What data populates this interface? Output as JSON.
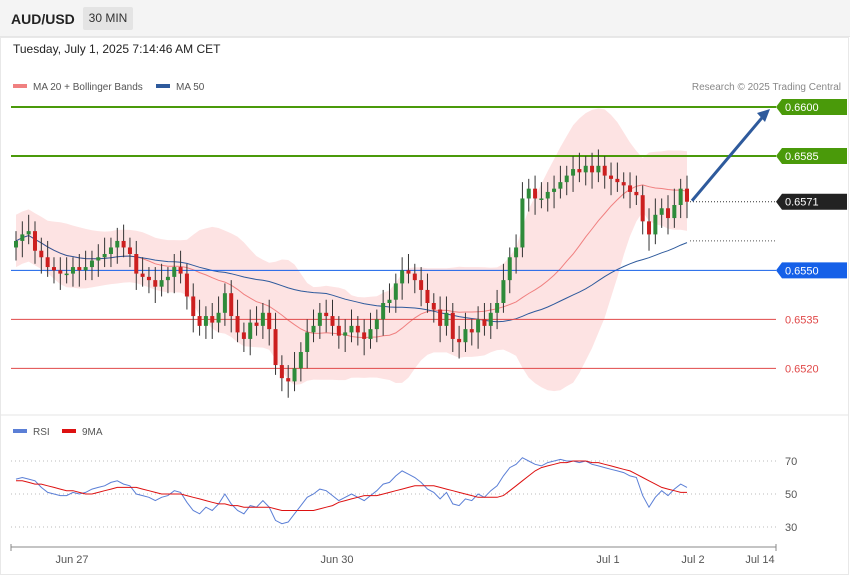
{
  "header": {
    "symbol": "AUD/USD",
    "timeframe": "30 MIN",
    "datetime": "Tuesday, July 1, 2025 7:14:46 AM CET"
  },
  "colors": {
    "ma20": "#f08080",
    "ma50": "#2e5a9c",
    "bands_fill": "#fde3e3",
    "up_candle": "#2e8b3a",
    "down_candle": "#cc1f1f",
    "resistance": "#4a9a0a",
    "support_blue": "#1560e8",
    "support_red": "#e04848",
    "last_price": "#222222",
    "rsi": "#5b7fd6",
    "rsi_ma": "#dd1111",
    "arrow": "#2e5a9c"
  },
  "chart_data": [
    {
      "type": "candlestick",
      "title": "",
      "legend": [
        {
          "name": "MA 20 + Bollinger Bands",
          "color": "#f08080"
        },
        {
          "name": "MA 50",
          "color": "#2e5a9c"
        }
      ],
      "credit": "Research © 2025 Trading Central",
      "ylim": [
        0.6503,
        0.6608
      ],
      "x_ticks": [
        "Jun 27",
        "Jun 30",
        "Jul 1",
        "Jul 2",
        "Jul 14"
      ],
      "levels": [
        {
          "value": 0.66,
          "label": "0.6600",
          "kind": "resistance"
        },
        {
          "value": 0.6585,
          "label": "0.6585",
          "kind": "resistance"
        },
        {
          "value": 0.6571,
          "label": "0.6571",
          "kind": "last"
        },
        {
          "value": 0.655,
          "label": "0.6550",
          "kind": "support-blue"
        },
        {
          "value": 0.6535,
          "label": "0.6535",
          "kind": "support-red"
        },
        {
          "value": 0.652,
          "label": "0.6520",
          "kind": "support-red"
        }
      ],
      "ma50_dotted_level": 0.6559,
      "arrow_target": 0.66,
      "closes": [
        0.6559,
        0.6561,
        0.6562,
        0.6556,
        0.6554,
        0.6551,
        0.655,
        0.6549,
        0.6549,
        0.6551,
        0.655,
        0.6551,
        0.6553,
        0.6554,
        0.6555,
        0.6557,
        0.6559,
        0.6557,
        0.6555,
        0.6549,
        0.6548,
        0.6547,
        0.6545,
        0.6547,
        0.6548,
        0.6551,
        0.6549,
        0.6542,
        0.6536,
        0.6533,
        0.6536,
        0.6534,
        0.6537,
        0.6543,
        0.6536,
        0.6531,
        0.6529,
        0.6534,
        0.6533,
        0.6537,
        0.6532,
        0.6521,
        0.6517,
        0.6516,
        0.652,
        0.6525,
        0.6531,
        0.6533,
        0.6537,
        0.6536,
        0.6533,
        0.653,
        0.6531,
        0.6533,
        0.6531,
        0.6529,
        0.6532,
        0.6535,
        0.654,
        0.6541,
        0.6546,
        0.655,
        0.6549,
        0.6547,
        0.6544,
        0.654,
        0.6538,
        0.6533,
        0.6537,
        0.6529,
        0.6528,
        0.6532,
        0.6531,
        0.6535,
        0.6533,
        0.6537,
        0.654,
        0.6547,
        0.6554,
        0.6557,
        0.6572,
        0.6575,
        0.6572,
        0.6572,
        0.6574,
        0.6575,
        0.6577,
        0.6579,
        0.6581,
        0.658,
        0.6582,
        0.658,
        0.6582,
        0.6579,
        0.6578,
        0.6577,
        0.6576,
        0.6574,
        0.6573,
        0.6565,
        0.6561,
        0.6567,
        0.6569,
        0.6566,
        0.657,
        0.6575,
        0.6571
      ]
    },
    {
      "type": "line",
      "title": "",
      "legend": [
        {
          "name": "RSI",
          "color": "#5b7fd6"
        },
        {
          "name": "9MA",
          "color": "#dd1111"
        }
      ],
      "ylim": [
        25,
        75
      ],
      "y_ticks": [
        70,
        50,
        30
      ],
      "series": [
        {
          "name": "RSI",
          "values": [
            59,
            60,
            59,
            58,
            54,
            51,
            50,
            49,
            49,
            51,
            50,
            51,
            53,
            54,
            55,
            57,
            58,
            56,
            55,
            50,
            49,
            48,
            46,
            48,
            49,
            52,
            51,
            45,
            40,
            38,
            42,
            40,
            44,
            50,
            44,
            40,
            38,
            43,
            42,
            46,
            42,
            34,
            32,
            33,
            38,
            43,
            48,
            50,
            53,
            52,
            49,
            46,
            48,
            50,
            48,
            46,
            49,
            52,
            56,
            57,
            61,
            64,
            62,
            60,
            57,
            53,
            51,
            47,
            51,
            44,
            43,
            47,
            46,
            50,
            48,
            52,
            55,
            61,
            66,
            68,
            72,
            70,
            68,
            67,
            69,
            70,
            71,
            70,
            70,
            69,
            70,
            68,
            67,
            66,
            65,
            64,
            63,
            61,
            60,
            49,
            42,
            48,
            52,
            49,
            53,
            56,
            54
          ]
        },
        {
          "name": "9MA",
          "values": [
            58,
            58,
            57,
            56,
            56,
            55,
            54,
            53,
            52,
            52,
            51,
            50,
            50,
            51,
            52,
            53,
            54,
            54,
            54,
            54,
            53,
            52,
            51,
            50,
            50,
            50,
            50,
            49,
            48,
            47,
            46,
            45,
            44,
            44,
            43,
            43,
            42,
            42,
            42,
            42,
            42,
            41,
            40,
            40,
            40,
            40,
            40,
            40,
            41,
            42,
            43,
            45,
            46,
            47,
            48,
            49,
            49,
            49,
            50,
            51,
            52,
            53,
            54,
            55,
            55,
            55,
            55,
            54,
            53,
            52,
            51,
            50,
            49,
            48,
            48,
            48,
            48,
            49,
            52,
            55,
            58,
            61,
            64,
            66,
            67,
            68,
            69,
            69,
            70,
            70,
            70,
            69,
            69,
            68,
            67,
            66,
            65,
            64,
            62,
            60,
            58,
            56,
            54,
            53,
            52,
            51,
            51
          ]
        }
      ]
    }
  ]
}
